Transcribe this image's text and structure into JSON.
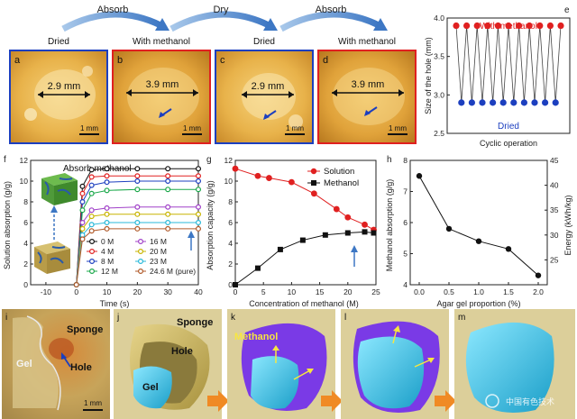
{
  "top_row": {
    "arrows": [
      "Absorb",
      "Dry",
      "Absorb"
    ],
    "panels": [
      {
        "letter": "a",
        "caption": "Dried",
        "measure": "2.9 mm",
        "scale": "1 mm",
        "frame": "#1c3fbf"
      },
      {
        "letter": "b",
        "caption": "With methanol",
        "measure": "3.9 mm",
        "scale": "1 mm",
        "frame": "#e02020"
      },
      {
        "letter": "c",
        "caption": "Dried",
        "measure": "2.9 mm",
        "scale": "1 mm",
        "frame": "#1c3fbf"
      },
      {
        "letter": "d",
        "caption": "With methanol",
        "measure": "3.9 mm",
        "scale": "1 mm",
        "frame": "#e02020"
      }
    ]
  },
  "chart_data": [
    {
      "panel": "e",
      "type": "line",
      "ylabel": "Size of the hole (mm)",
      "xlabel": "Cyclic operation",
      "ylim": [
        2.5,
        4.0
      ],
      "yticks": [
        "2.5",
        "3.0",
        "3.5",
        "4.0"
      ],
      "series": [
        {
          "name": "With methanol",
          "color": "#e02020",
          "values": [
            3.9,
            3.9,
            3.9,
            3.9,
            3.9,
            3.9,
            3.9,
            3.9,
            3.9,
            3.9,
            3.9
          ]
        },
        {
          "name": "Dried",
          "color": "#1c3fbf",
          "values": [
            2.9,
            2.9,
            2.9,
            2.9,
            2.9,
            2.9,
            2.9,
            2.9,
            2.9,
            2.9,
            2.9
          ]
        }
      ]
    },
    {
      "panel": "f",
      "type": "line",
      "xlabel": "Time (s)",
      "ylabel": "Solution absorption (g/g)",
      "xlim": [
        -15,
        40
      ],
      "ylim": [
        0,
        12
      ],
      "xticks": [
        "-10",
        "0",
        "10",
        "20",
        "30",
        "40"
      ],
      "yticks": [
        "0",
        "2",
        "4",
        "6",
        "8",
        "10",
        "12"
      ],
      "annotation": "Absorb methanol",
      "x": [
        0,
        2,
        5,
        10,
        20,
        30,
        40
      ],
      "series": [
        {
          "name": "0 M",
          "color": "#111111",
          "values": [
            0,
            9.5,
            11.1,
            11.2,
            11.2,
            11.2,
            11.2
          ]
        },
        {
          "name": "4 M",
          "color": "#e02020",
          "values": [
            0,
            8.8,
            10.4,
            10.5,
            10.5,
            10.5,
            10.5
          ]
        },
        {
          "name": "8 M",
          "color": "#1c3fbf",
          "values": [
            0,
            8.0,
            9.6,
            9.9,
            10.0,
            10.0,
            10.0
          ]
        },
        {
          "name": "12 M",
          "color": "#1aa84a",
          "values": [
            0,
            7.2,
            8.8,
            9.1,
            9.2,
            9.2,
            9.2
          ]
        },
        {
          "name": "16 M",
          "color": "#a040c8",
          "values": [
            0,
            6.0,
            7.2,
            7.4,
            7.5,
            7.5,
            7.5
          ]
        },
        {
          "name": "20 M",
          "color": "#c8b400",
          "values": [
            0,
            5.4,
            6.6,
            6.8,
            6.8,
            6.8,
            6.8
          ]
        },
        {
          "name": "23 M",
          "color": "#28b8d8",
          "values": [
            0,
            4.8,
            5.8,
            6.0,
            6.0,
            6.0,
            6.0
          ]
        },
        {
          "name": "24.6 M (pure)",
          "color": "#b05a2a",
          "values": [
            0,
            4.4,
            5.2,
            5.4,
            5.4,
            5.4,
            5.4
          ]
        }
      ]
    },
    {
      "panel": "g",
      "type": "line",
      "xlabel": "Concentration of methanol (M)",
      "ylabel": "Absorption capacity (g/g)",
      "xlim": [
        0,
        25
      ],
      "ylim": [
        0,
        12
      ],
      "xticks": [
        "0",
        "5",
        "10",
        "15",
        "20",
        "25"
      ],
      "yticks": [
        "0",
        "2",
        "4",
        "6",
        "8",
        "10",
        "12"
      ],
      "series": [
        {
          "name": "Solution",
          "color": "#e02020",
          "x": [
            0,
            4,
            6,
            10,
            14,
            18,
            20,
            23,
            24.6
          ],
          "values": [
            11.2,
            10.5,
            10.3,
            9.9,
            8.8,
            7.3,
            6.5,
            5.8,
            5.3
          ]
        },
        {
          "name": "Methanol",
          "color": "#111111",
          "x": [
            0,
            4,
            8,
            12,
            16,
            20,
            23,
            24.6
          ],
          "values": [
            0,
            1.6,
            3.4,
            4.3,
            4.8,
            5.0,
            5.1,
            5.0
          ]
        }
      ]
    },
    {
      "panel": "h",
      "type": "line",
      "xlabel": "Agar gel proportion (%)",
      "ylabel": "Methanol absorption (g/g)",
      "ylabel2": "Energy (kWh/kg)",
      "xlim": [
        0,
        2.0
      ],
      "ylim": [
        4,
        8
      ],
      "ylim2": [
        20,
        45
      ],
      "xticks": [
        "0.0",
        "0.5",
        "1.0",
        "1.5",
        "2.0"
      ],
      "yticks": [
        "4",
        "5",
        "6",
        "7",
        "8"
      ],
      "yticks2": [
        "25",
        "30",
        "35",
        "40",
        "45"
      ],
      "x": [
        0.0,
        0.5,
        1.0,
        1.5,
        2.0
      ],
      "values": [
        7.5,
        5.8,
        5.4,
        5.15,
        4.3
      ]
    }
  ],
  "bottom_row": {
    "i": {
      "letter": "i",
      "labels": [
        "Sponge",
        "Gel",
        "Hole"
      ],
      "scale": "1 mm"
    },
    "j": {
      "letter": "j",
      "labels": [
        "Sponge",
        "Hole",
        "Gel"
      ]
    },
    "k": {
      "letter": "k",
      "labels": [
        "Methanol"
      ]
    },
    "l": {
      "letter": "l"
    },
    "m": {
      "letter": "m"
    },
    "watermark": "中国有色技术"
  },
  "colors": {
    "gel": "#3ec8e8",
    "methanol": "#7a3ae6",
    "sponge": "#c8b45a",
    "arrow": "#f08a24"
  }
}
